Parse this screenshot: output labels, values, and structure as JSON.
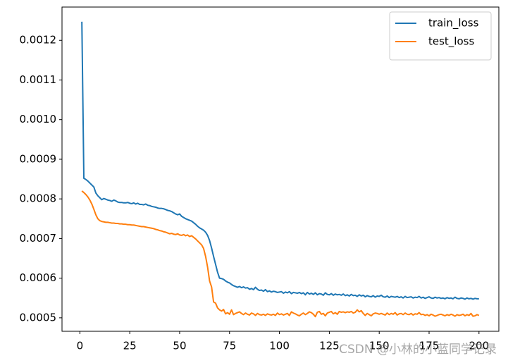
{
  "chart_data": {
    "type": "line",
    "x": [
      1,
      2,
      3,
      4,
      5,
      6,
      7,
      8,
      9,
      10,
      11,
      12,
      13,
      14,
      15,
      16,
      17,
      18,
      19,
      20,
      21,
      22,
      23,
      24,
      25,
      26,
      27,
      28,
      29,
      30,
      31,
      32,
      33,
      34,
      35,
      36,
      37,
      38,
      39,
      40,
      41,
      42,
      43,
      44,
      45,
      46,
      47,
      48,
      49,
      50,
      51,
      52,
      53,
      54,
      55,
      56,
      57,
      58,
      59,
      60,
      61,
      62,
      63,
      64,
      65,
      66,
      67,
      68,
      69,
      70,
      71,
      72,
      73,
      74,
      75,
      76,
      77,
      78,
      79,
      80,
      81,
      82,
      83,
      84,
      85,
      86,
      87,
      88,
      89,
      90,
      91,
      92,
      93,
      94,
      95,
      96,
      97,
      98,
      99,
      100,
      101,
      102,
      103,
      104,
      105,
      106,
      107,
      108,
      109,
      110,
      111,
      112,
      113,
      114,
      115,
      116,
      117,
      118,
      119,
      120,
      121,
      122,
      123,
      124,
      125,
      126,
      127,
      128,
      129,
      130,
      131,
      132,
      133,
      134,
      135,
      136,
      137,
      138,
      139,
      140,
      141,
      142,
      143,
      144,
      145,
      146,
      147,
      148,
      149,
      150,
      151,
      152,
      153,
      154,
      155,
      156,
      157,
      158,
      159,
      160,
      161,
      162,
      163,
      164,
      165,
      166,
      167,
      168,
      169,
      170,
      171,
      172,
      173,
      174,
      175,
      176,
      177,
      178,
      179,
      180,
      181,
      182,
      183,
      184,
      185,
      186,
      187,
      188,
      189,
      190,
      191,
      192,
      193,
      194,
      195,
      196,
      197,
      198,
      199,
      200
    ],
    "series": [
      {
        "name": "train_loss",
        "color": "#1f77b4",
        "values": [
          0.001247,
          0.000852,
          0.000849,
          0.000845,
          0.00084,
          0.000835,
          0.00083,
          0.000815,
          0.000808,
          0.000803,
          0.000798,
          0.000801,
          0.000799,
          0.000797,
          0.000796,
          0.000794,
          0.000797,
          0.000795,
          0.000792,
          0.000791,
          0.000791,
          0.00079,
          0.00079,
          0.000791,
          0.000789,
          0.000788,
          0.00079,
          0.000787,
          0.000789,
          0.000786,
          0.000786,
          0.000785,
          0.000787,
          0.000784,
          0.000783,
          0.000781,
          0.00078,
          0.000779,
          0.000777,
          0.000776,
          0.000776,
          0.000775,
          0.000773,
          0.000771,
          0.00077,
          0.000768,
          0.000765,
          0.000762,
          0.00076,
          0.000762,
          0.000756,
          0.000753,
          0.00075,
          0.000748,
          0.000746,
          0.000744,
          0.00074,
          0.000736,
          0.000731,
          0.000727,
          0.000724,
          0.000721,
          0.000716,
          0.000708,
          0.000695,
          0.000676,
          0.000655,
          0.000635,
          0.000615,
          0.0006,
          0.000599,
          0.000597,
          0.000593,
          0.00059,
          0.000588,
          0.000584,
          0.000581,
          0.000579,
          0.000577,
          0.000579,
          0.000576,
          0.000578,
          0.000575,
          0.000576,
          0.000572,
          0.000574,
          0.000571,
          0.000577,
          0.000572,
          0.000569,
          0.00057,
          0.000567,
          0.000571,
          0.000566,
          0.000568,
          0.000565,
          0.000567,
          0.000566,
          0.000564,
          0.000565,
          0.000566,
          0.000562,
          0.000565,
          0.000563,
          0.000566,
          0.000561,
          0.000564,
          0.000563,
          0.000562,
          0.000564,
          0.000561,
          0.000563,
          0.000558,
          0.000564,
          0.00056,
          0.000562,
          0.000559,
          0.000563,
          0.000558,
          0.000561,
          0.00056,
          0.000557,
          0.000563,
          0.000559,
          0.000558,
          0.000561,
          0.000557,
          0.00056,
          0.000558,
          0.000559,
          0.000557,
          0.00056,
          0.000556,
          0.000558,
          0.000555,
          0.000559,
          0.000556,
          0.000557,
          0.000554,
          0.000558,
          0.000555,
          0.000557,
          0.000553,
          0.000556,
          0.000554,
          0.000553,
          0.000556,
          0.000552,
          0.000555,
          0.000554,
          0.000557,
          0.000553,
          0.000552,
          0.000555,
          0.000551,
          0.000554,
          0.000553,
          0.000552,
          0.000554,
          0.000551,
          0.000553,
          0.00055,
          0.000554,
          0.000551,
          0.000552,
          0.000553,
          0.00055,
          0.000552,
          0.000551,
          0.000554,
          0.00055,
          0.000552,
          0.000549,
          0.000551,
          0.000553,
          0.00055,
          0.000549,
          0.000552,
          0.00055,
          0.000551,
          0.000549,
          0.00055,
          0.000548,
          0.000551,
          0.000549,
          0.00055,
          0.000548,
          0.000552,
          0.000549,
          0.000548,
          0.00055,
          0.000549,
          0.000547,
          0.00055,
          0.000548,
          0.000549,
          0.000547,
          0.000549,
          0.000548,
          0.000548
        ]
      },
      {
        "name": "test_loss",
        "color": "#ff7f0e",
        "values": [
          0.00082,
          0.000816,
          0.000811,
          0.000805,
          0.000797,
          0.000787,
          0.000774,
          0.00076,
          0.00075,
          0.000745,
          0.000743,
          0.000742,
          0.000741,
          0.000741,
          0.00074,
          0.000739,
          0.000739,
          0.000738,
          0.000738,
          0.000737,
          0.000737,
          0.000736,
          0.000736,
          0.000735,
          0.000735,
          0.000734,
          0.000734,
          0.000733,
          0.000732,
          0.000731,
          0.00073,
          0.00073,
          0.000729,
          0.000728,
          0.000727,
          0.000726,
          0.000725,
          0.000723,
          0.000722,
          0.00072,
          0.000719,
          0.000717,
          0.000716,
          0.000714,
          0.000712,
          0.000713,
          0.000711,
          0.00071,
          0.000712,
          0.000709,
          0.000708,
          0.00071,
          0.000707,
          0.000709,
          0.000705,
          0.000707,
          0.000703,
          0.000699,
          0.000694,
          0.000689,
          0.000684,
          0.000675,
          0.000655,
          0.000628,
          0.000593,
          0.000578,
          0.00054,
          0.000537,
          0.000525,
          0.00052,
          0.000517,
          0.000521,
          0.00051,
          0.000513,
          0.000509,
          0.00052,
          0.000508,
          0.000511,
          0.000513,
          0.000515,
          0.000511,
          0.000508,
          0.000512,
          0.000509,
          0.000507,
          0.000512,
          0.00051,
          0.000506,
          0.000511,
          0.000508,
          0.000507,
          0.000509,
          0.000506,
          0.00051,
          0.000508,
          0.000507,
          0.000509,
          0.000506,
          0.000512,
          0.000508,
          0.00051,
          0.000507,
          0.000509,
          0.000511,
          0.000506,
          0.000515,
          0.000512,
          0.00051,
          0.000507,
          0.000505,
          0.000509,
          0.000512,
          0.000508,
          0.000511,
          0.000515,
          0.000513,
          0.000509,
          0.000503,
          0.000514,
          0.000516,
          0.000509,
          0.000511,
          0.000505,
          0.000512,
          0.000514,
          0.000516,
          0.00051,
          0.000513,
          0.000509,
          0.000516,
          0.000514,
          0.000515,
          0.000513,
          0.000515,
          0.000514,
          0.000516,
          0.000512,
          0.000514,
          0.00052,
          0.000515,
          0.000518,
          0.000511,
          0.000506,
          0.000511,
          0.000508,
          0.000505,
          0.00051,
          0.000512,
          0.000511,
          0.000509,
          0.000511,
          0.000509,
          0.000507,
          0.000512,
          0.000508,
          0.000511,
          0.000509,
          0.000513,
          0.000507,
          0.00051,
          0.000511,
          0.000508,
          0.000512,
          0.000509,
          0.000508,
          0.000511,
          0.000507,
          0.00051,
          0.000509,
          0.000513,
          0.000508,
          0.000509,
          0.000506,
          0.000508,
          0.000505,
          0.000509,
          0.000507,
          0.000504,
          0.000506,
          0.000508,
          0.000509,
          0.000507,
          0.000505,
          0.000508,
          0.000506,
          0.000509,
          0.000507,
          0.000504,
          0.000508,
          0.000506,
          0.000507,
          0.000509,
          0.000505,
          0.000508,
          0.000506,
          0.000511,
          0.000504,
          0.000505,
          0.000508,
          0.000506
        ]
      }
    ],
    "xlim": [
      -8.95,
      209.95
    ],
    "xticks": [
      0,
      25,
      50,
      75,
      100,
      125,
      150,
      175,
      200
    ],
    "ylim": [
      0.000466,
      0.001284
    ],
    "yticks": [
      0.0005,
      0.0006,
      0.0007,
      0.0008,
      0.0009,
      {
        "value": 0.001,
        "label": "0.0010"
      },
      0.0011,
      0.0012
    ],
    "legend": "upper right",
    "watermark": "CSDN @小林的小蓝同学记录"
  }
}
